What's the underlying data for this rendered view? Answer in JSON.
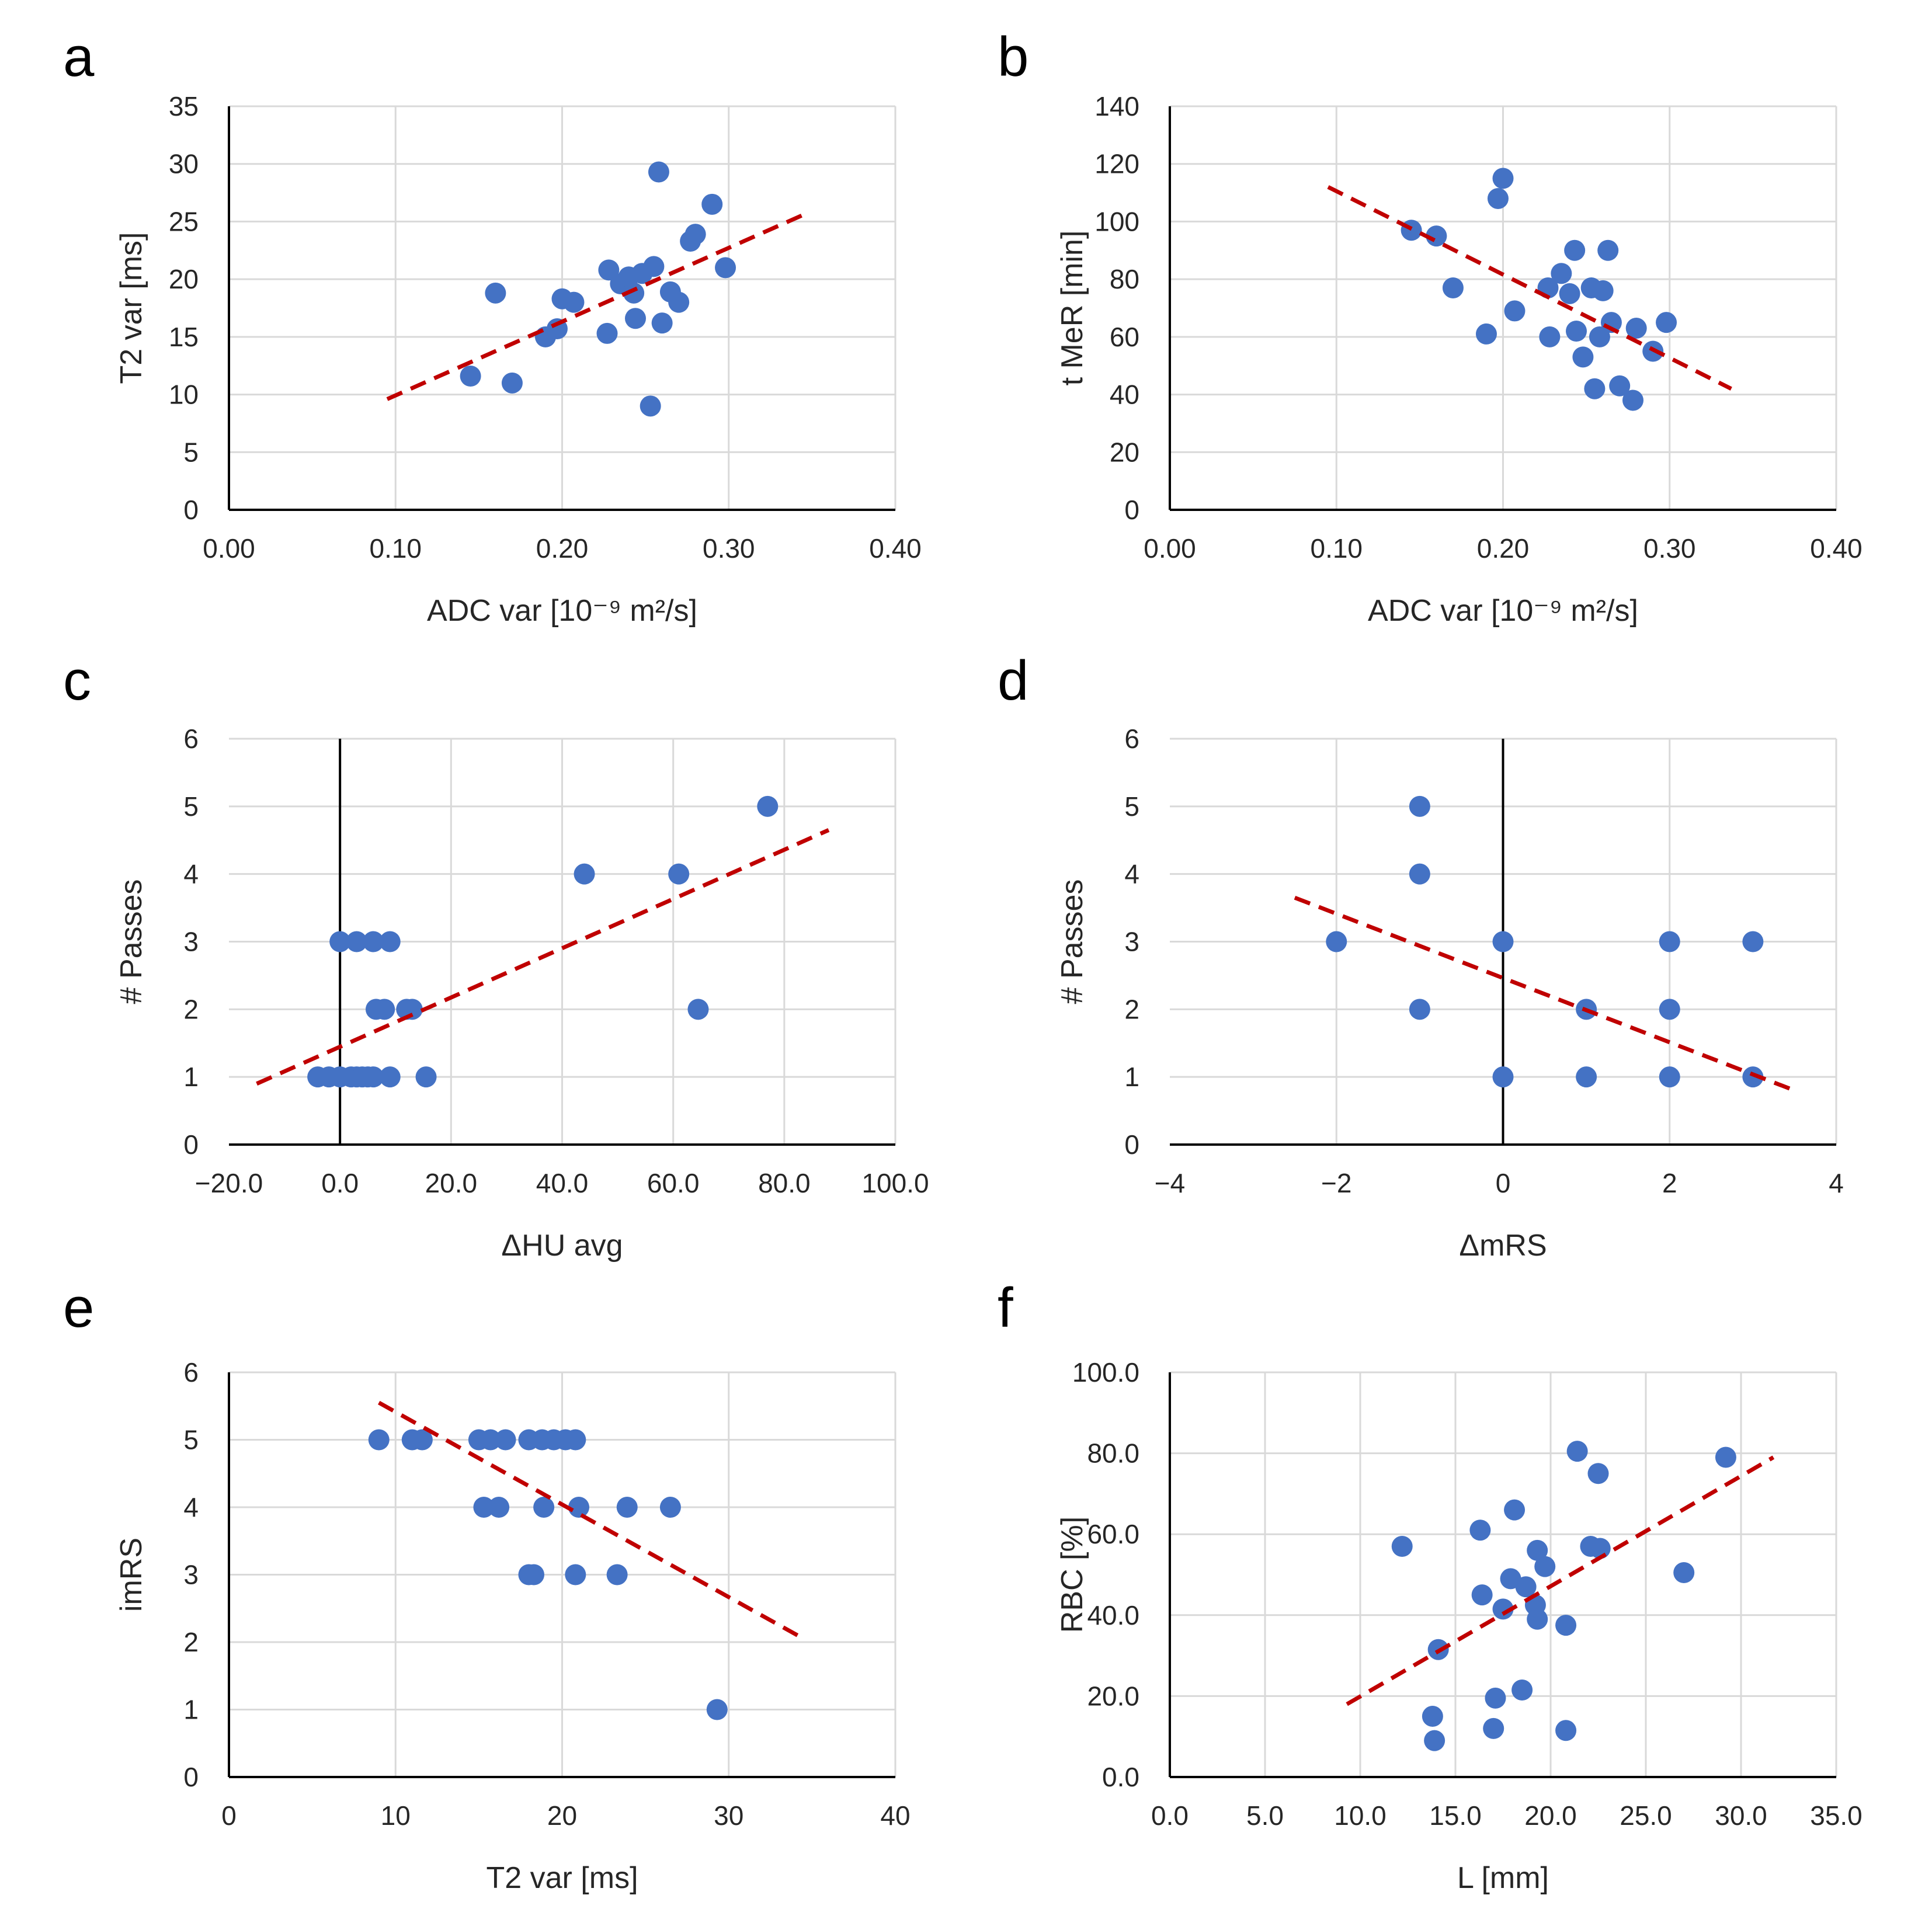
{
  "colors": {
    "point": "#4472C4",
    "trendline": "#C00000",
    "grid": "#D9D9D9",
    "axis": "#000000",
    "text": "#262626"
  },
  "chart_data": [
    {
      "type": "scatter",
      "panel": "a",
      "xlabel": "ADC var [10⁻⁹ m²/s]",
      "ylabel": "T2 var [ms]",
      "xlim": [
        0,
        0.4
      ],
      "ylim": [
        0,
        35
      ],
      "xticks": [
        0,
        0.1,
        0.2,
        0.3,
        0.4
      ],
      "yticks": [
        0,
        5,
        10,
        15,
        20,
        25,
        30,
        35
      ],
      "xtick_labels": [
        "0.00",
        "0.10",
        "0.20",
        "0.30",
        "0.40"
      ],
      "ytick_labels": [
        "0",
        "5",
        "10",
        "15",
        "20",
        "25",
        "30",
        "35"
      ],
      "points": [
        [
          0.145,
          11.6
        ],
        [
          0.16,
          18.8
        ],
        [
          0.17,
          11.0
        ],
        [
          0.19,
          15.0
        ],
        [
          0.197,
          15.7
        ],
        [
          0.2,
          18.3
        ],
        [
          0.207,
          18.0
        ],
        [
          0.227,
          15.3
        ],
        [
          0.228,
          20.8
        ],
        [
          0.235,
          19.6
        ],
        [
          0.24,
          20.2
        ],
        [
          0.243,
          18.8
        ],
        [
          0.244,
          16.6
        ],
        [
          0.248,
          20.5
        ],
        [
          0.253,
          9.0
        ],
        [
          0.255,
          21.1
        ],
        [
          0.258,
          29.3
        ],
        [
          0.26,
          16.2
        ],
        [
          0.265,
          18.9
        ],
        [
          0.27,
          18.0
        ],
        [
          0.277,
          23.3
        ],
        [
          0.28,
          23.9
        ],
        [
          0.29,
          26.5
        ],
        [
          0.298,
          21.0
        ]
      ],
      "trendline": {
        "x": [
          0.095,
          0.345
        ],
        "y": [
          9.6,
          25.6
        ]
      }
    },
    {
      "type": "scatter",
      "panel": "b",
      "xlabel": "ADC var [10⁻⁹ m²/s]",
      "ylabel": "t MeR [min]",
      "xlim": [
        0,
        0.4
      ],
      "ylim": [
        0,
        140
      ],
      "xticks": [
        0,
        0.1,
        0.2,
        0.3,
        0.4
      ],
      "yticks": [
        0,
        20,
        40,
        60,
        80,
        100,
        120,
        140
      ],
      "xtick_labels": [
        "0.00",
        "0.10",
        "0.20",
        "0.30",
        "0.40"
      ],
      "ytick_labels": [
        "0",
        "20",
        "40",
        "60",
        "80",
        "100",
        "120",
        "140"
      ],
      "points": [
        [
          0.145,
          97
        ],
        [
          0.16,
          95
        ],
        [
          0.17,
          77
        ],
        [
          0.19,
          61
        ],
        [
          0.197,
          108
        ],
        [
          0.2,
          115
        ],
        [
          0.207,
          69
        ],
        [
          0.227,
          77
        ],
        [
          0.228,
          60
        ],
        [
          0.235,
          82
        ],
        [
          0.24,
          75
        ],
        [
          0.243,
          90
        ],
        [
          0.244,
          62
        ],
        [
          0.248,
          53
        ],
        [
          0.253,
          77
        ],
        [
          0.255,
          42
        ],
        [
          0.258,
          60
        ],
        [
          0.26,
          76
        ],
        [
          0.263,
          90
        ],
        [
          0.265,
          65
        ],
        [
          0.27,
          43
        ],
        [
          0.278,
          38
        ],
        [
          0.28,
          63
        ],
        [
          0.29,
          55
        ],
        [
          0.298,
          65
        ]
      ],
      "trendline": {
        "x": [
          0.095,
          0.337
        ],
        "y": [
          112,
          42
        ]
      }
    },
    {
      "type": "scatter",
      "panel": "c",
      "xlabel": "ΔHU avg",
      "ylabel": "# Passes",
      "xlim": [
        -20,
        100
      ],
      "ylim": [
        0,
        6
      ],
      "xticks": [
        -20,
        0,
        20,
        40,
        60,
        80,
        100
      ],
      "yticks": [
        0,
        1,
        2,
        3,
        4,
        5,
        6
      ],
      "xtick_labels": [
        "−20.0",
        "0.0",
        "20.0",
        "40.0",
        "60.0",
        "80.0",
        "100.0"
      ],
      "ytick_labels": [
        "0",
        "1",
        "2",
        "3",
        "4",
        "5",
        "6"
      ],
      "points": [
        [
          -4,
          1
        ],
        [
          -2,
          1
        ],
        [
          0,
          1
        ],
        [
          2,
          1
        ],
        [
          3,
          1
        ],
        [
          4,
          1
        ],
        [
          5,
          1
        ],
        [
          6,
          1
        ],
        [
          9,
          1
        ],
        [
          15.5,
          1
        ],
        [
          0,
          3
        ],
        [
          3,
          3
        ],
        [
          6,
          3
        ],
        [
          9,
          3
        ],
        [
          6.5,
          2
        ],
        [
          8,
          2
        ],
        [
          12,
          2
        ],
        [
          13,
          2
        ],
        [
          44,
          4
        ],
        [
          61,
          4
        ],
        [
          64.5,
          2
        ],
        [
          77,
          5
        ]
      ],
      "trendline": {
        "x": [
          -15,
          88
        ],
        "y": [
          0.9,
          4.65
        ]
      }
    },
    {
      "type": "scatter",
      "panel": "d",
      "xlabel": "ΔmRS",
      "ylabel": "# Passes",
      "xlim": [
        -4,
        4
      ],
      "ylim": [
        0,
        6
      ],
      "xticks": [
        -4,
        -2,
        0,
        2,
        4
      ],
      "yticks": [
        0,
        1,
        2,
        3,
        4,
        5,
        6
      ],
      "xtick_labels": [
        "−4",
        "−2",
        "0",
        "2",
        "4"
      ],
      "ytick_labels": [
        "0",
        "1",
        "2",
        "3",
        "4",
        "5",
        "6"
      ],
      "points": [
        [
          -2,
          3
        ],
        [
          -1,
          5
        ],
        [
          -1,
          4
        ],
        [
          -1,
          2
        ],
        [
          0,
          3
        ],
        [
          0,
          1
        ],
        [
          1,
          2
        ],
        [
          1,
          1
        ],
        [
          2,
          3
        ],
        [
          2,
          2
        ],
        [
          2,
          1
        ],
        [
          3,
          3
        ],
        [
          3,
          1
        ]
      ],
      "trendline": {
        "x": [
          -2.5,
          3.5
        ],
        "y": [
          3.65,
          0.8
        ]
      }
    },
    {
      "type": "scatter",
      "panel": "e",
      "xlabel": "T2 var [ms]",
      "ylabel": "imRS",
      "xlim": [
        0,
        40
      ],
      "ylim": [
        0,
        6
      ],
      "xticks": [
        0,
        10,
        20,
        30,
        40
      ],
      "yticks": [
        0,
        1,
        2,
        3,
        4,
        5,
        6
      ],
      "xtick_labels": [
        "0",
        "10",
        "20",
        "30",
        "40"
      ],
      "ytick_labels": [
        "0",
        "1",
        "2",
        "3",
        "4",
        "5",
        "6"
      ],
      "points": [
        [
          9,
          5
        ],
        [
          11,
          5
        ],
        [
          11.6,
          5
        ],
        [
          15,
          5
        ],
        [
          15.7,
          5
        ],
        [
          16.6,
          5
        ],
        [
          18,
          5
        ],
        [
          18.8,
          5
        ],
        [
          19.5,
          5
        ],
        [
          20.2,
          5
        ],
        [
          20.8,
          5
        ],
        [
          15.3,
          4
        ],
        [
          16.2,
          4
        ],
        [
          18.9,
          4
        ],
        [
          21.0,
          4
        ],
        [
          23.9,
          4
        ],
        [
          26.5,
          4
        ],
        [
          18.0,
          3
        ],
        [
          18.3,
          3
        ],
        [
          20.8,
          3
        ],
        [
          23.3,
          3
        ],
        [
          29.3,
          1
        ]
      ],
      "trendline": {
        "x": [
          9,
          34.5
        ],
        "y": [
          5.55,
          2.05
        ]
      }
    },
    {
      "type": "scatter",
      "panel": "f",
      "xlabel": "L [mm]",
      "ylabel": "RBC [%]",
      "xlim": [
        0,
        35
      ],
      "ylim": [
        0,
        100
      ],
      "xticks": [
        0,
        5,
        10,
        15,
        20,
        25,
        30,
        35
      ],
      "yticks": [
        0,
        20,
        40,
        60,
        80,
        100
      ],
      "xtick_labels": [
        "0.0",
        "5.0",
        "10.0",
        "15.0",
        "20.0",
        "25.0",
        "30.0",
        "35.0"
      ],
      "ytick_labels": [
        "0.0",
        "20.0",
        "40.0",
        "60.0",
        "80.0",
        "100.0"
      ],
      "points": [
        [
          12.2,
          57
        ],
        [
          13.8,
          15
        ],
        [
          13.9,
          9
        ],
        [
          14.1,
          31.5
        ],
        [
          16.3,
          61
        ],
        [
          16.4,
          45
        ],
        [
          17,
          12
        ],
        [
          17.1,
          19.5
        ],
        [
          17.5,
          41.5
        ],
        [
          17.9,
          49
        ],
        [
          18.1,
          66
        ],
        [
          18.5,
          21.5
        ],
        [
          18.7,
          47
        ],
        [
          19.2,
          42.5
        ],
        [
          19.3,
          39
        ],
        [
          19.3,
          56
        ],
        [
          19.7,
          52
        ],
        [
          20.8,
          37.5
        ],
        [
          20.8,
          11.5
        ],
        [
          21.4,
          80.5
        ],
        [
          22.1,
          57
        ],
        [
          22.5,
          75
        ],
        [
          22.6,
          56.5
        ],
        [
          27,
          50.5
        ],
        [
          29.2,
          79
        ]
      ],
      "trendline": {
        "x": [
          9.3,
          31.7
        ],
        "y": [
          18,
          79
        ]
      }
    }
  ]
}
